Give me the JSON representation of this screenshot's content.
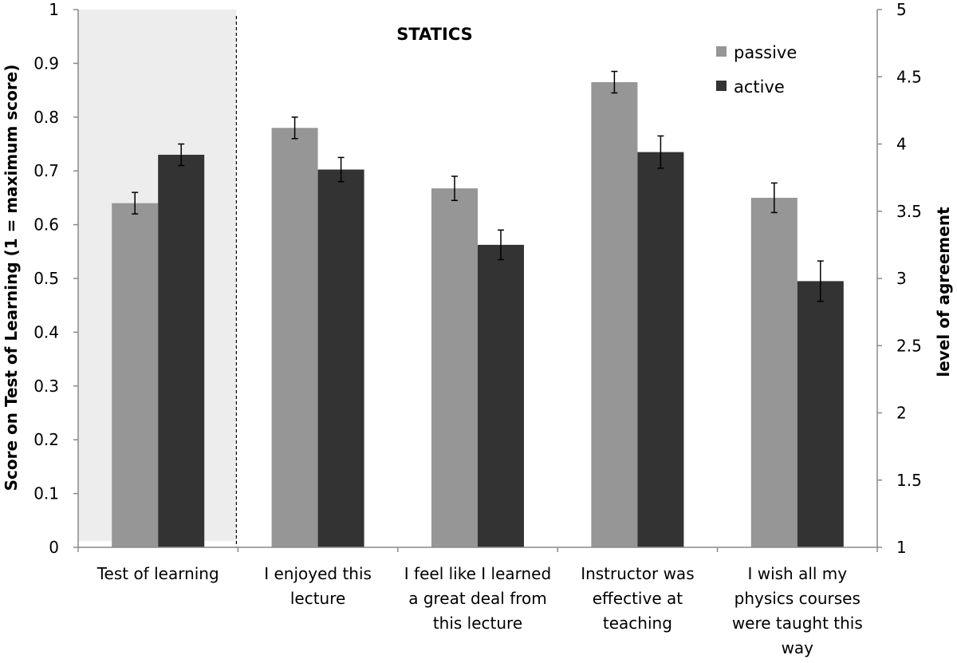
{
  "chart_data": {
    "type": "bar",
    "title": "STATICS",
    "ylabel_left": "Score on Test of Learning  (1 = maximum score)",
    "ylabel_right": "level of agreement",
    "ylim_left": [
      0,
      1
    ],
    "ylim_right": [
      1,
      5
    ],
    "yticks_left": [
      "0",
      "0.1",
      "0.2",
      "0.3",
      "0.4",
      "0.5",
      "0.6",
      "0.7",
      "0.8",
      "0.9",
      "1"
    ],
    "yticks_right": [
      "1",
      "1.5",
      "2",
      "2.5",
      "3",
      "3.5",
      "4",
      "4.5",
      "5"
    ],
    "grid": false,
    "legend_position": "top-right",
    "categories": [
      [
        "Test of learning"
      ],
      [
        "I enjoyed this",
        "lecture"
      ],
      [
        "I feel like I learned",
        "a great deal from",
        "this lecture"
      ],
      [
        "Instructor was",
        "effective at",
        "teaching"
      ],
      [
        "I wish all my",
        "physics courses",
        "were taught this",
        "way"
      ]
    ],
    "axis_for_category": [
      "left",
      "right",
      "right",
      "right",
      "right"
    ],
    "series": [
      {
        "name": "passive",
        "color": "#969696",
        "values": [
          0.64,
          4.12,
          3.67,
          4.46,
          3.6
        ],
        "errors": [
          0.02,
          0.08,
          0.09,
          0.08,
          0.11
        ]
      },
      {
        "name": "active",
        "color": "#333333",
        "values": [
          0.73,
          3.81,
          3.25,
          3.94,
          2.98
        ],
        "errors": [
          0.02,
          0.09,
          0.11,
          0.12,
          0.15
        ]
      }
    ],
    "highlight_category": "Test of learning"
  }
}
